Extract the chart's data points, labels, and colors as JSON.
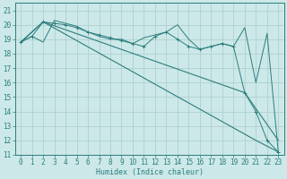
{
  "xlabel": "Humidex (Indice chaleur)",
  "xlim": [
    -0.5,
    23.5
  ],
  "ylim": [
    11,
    21.5
  ],
  "xticks": [
    0,
    1,
    2,
    3,
    4,
    5,
    6,
    7,
    8,
    9,
    10,
    11,
    12,
    13,
    14,
    15,
    16,
    17,
    18,
    19,
    20,
    21,
    22,
    23
  ],
  "yticks": [
    11,
    12,
    13,
    14,
    15,
    16,
    17,
    18,
    19,
    20,
    21
  ],
  "bg_color": "#cce8e8",
  "line_color": "#2d7d7d",
  "grid_color": "#aacccc",
  "wavy_x": [
    0,
    1,
    2,
    3,
    4,
    5,
    6,
    7,
    8,
    9,
    10,
    11,
    12,
    13,
    14,
    15,
    16,
    17,
    18,
    19,
    20,
    21,
    22,
    23
  ],
  "wavy_y": [
    18.8,
    19.2,
    18.8,
    20.3,
    20.1,
    19.9,
    19.5,
    19.2,
    19.0,
    19.0,
    18.7,
    19.1,
    19.3,
    19.5,
    20.0,
    19.0,
    18.3,
    18.5,
    18.7,
    18.5,
    19.8,
    16.0,
    19.4,
    11.2
  ],
  "line1_x": [
    0,
    2,
    21,
    23
  ],
  "line1_y": [
    18.8,
    20.2,
    12.0,
    11.2
  ],
  "line2_x": [
    0,
    2,
    20,
    23
  ],
  "line2_y": [
    18.8,
    20.2,
    15.3,
    12.0
  ],
  "marker_x": [
    0,
    1,
    2,
    3,
    4,
    5,
    6,
    7,
    8,
    9,
    10,
    11,
    12,
    13,
    14,
    15,
    16,
    17,
    18,
    19,
    20,
    21,
    22,
    23
  ],
  "marker_y": [
    18.8,
    19.2,
    20.2,
    20.1,
    20.0,
    19.8,
    19.5,
    19.3,
    19.1,
    18.9,
    18.7,
    18.5,
    19.2,
    19.5,
    19.0,
    18.5,
    18.3,
    18.5,
    18.7,
    18.5,
    15.3,
    14.0,
    12.0,
    11.2
  ],
  "xlabel_fontsize": 6,
  "tick_fontsize": 5.5
}
